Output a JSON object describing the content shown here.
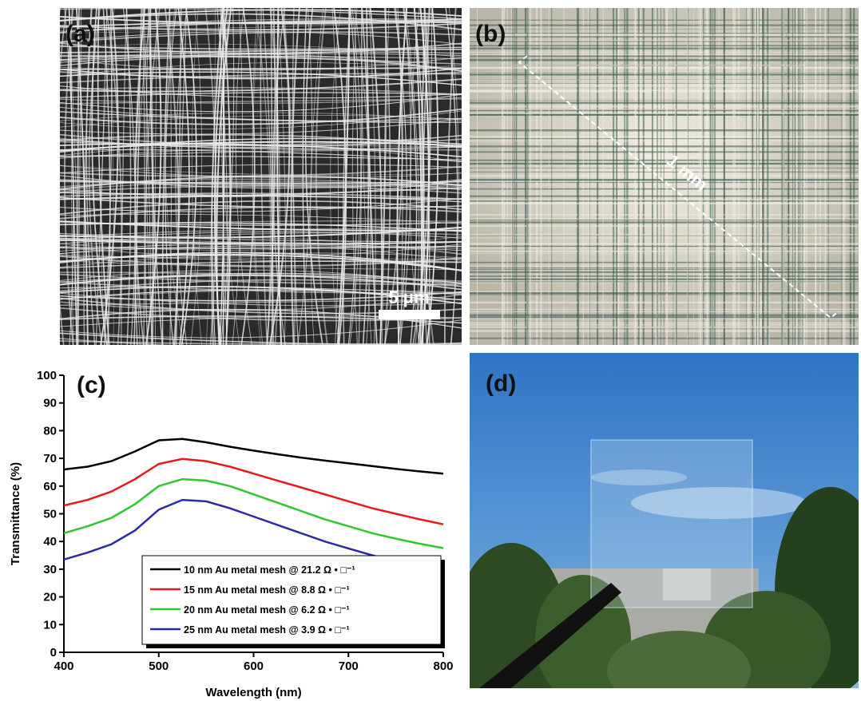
{
  "panels": {
    "a": {
      "label": "(a)",
      "scale_bar": "5 μm"
    },
    "b": {
      "label": "(b)",
      "scale_bar": "1 mm"
    },
    "d": {
      "label": "(d)"
    }
  },
  "chart_data": {
    "type": "line",
    "label": "(c)",
    "xlabel": "Wavelength (nm)",
    "ylabel": "Transmittance (%)",
    "x": [
      400,
      425,
      450,
      475,
      500,
      525,
      550,
      575,
      600,
      625,
      650,
      675,
      700,
      725,
      750,
      775,
      800
    ],
    "xlim": [
      400,
      800
    ],
    "xticks": [
      400,
      500,
      600,
      700,
      800
    ],
    "ylim": [
      0,
      100
    ],
    "yticks": [
      0,
      10,
      20,
      30,
      40,
      50,
      60,
      70,
      80,
      90,
      100
    ],
    "legend": "lower right",
    "series": [
      {
        "name": "10 nm Au metal mesh @ 21.2 Ω • □⁻¹",
        "color": "#000000",
        "values": [
          66,
          67,
          69,
          72.5,
          76.5,
          77,
          75.8,
          74.2,
          72.8,
          71.5,
          70.3,
          69.2,
          68.2,
          67.2,
          66.2,
          65.3,
          64.5
        ]
      },
      {
        "name": "15 nm Au metal mesh @ 8.8 Ω • □⁻¹",
        "color": "#e8191b",
        "values": [
          53,
          55,
          58,
          62.5,
          68,
          69.8,
          69,
          67,
          64.5,
          62,
          59.5,
          57,
          54.5,
          52,
          50,
          48,
          46.2
        ]
      },
      {
        "name": "20 nm Au metal mesh @ 6.2 Ω • □⁻¹",
        "color": "#2ec82e",
        "values": [
          43,
          45.5,
          48.5,
          53.5,
          60,
          62.5,
          62,
          60,
          57,
          54,
          51,
          48,
          45.5,
          43,
          41,
          39.2,
          37.6
        ]
      },
      {
        "name": "25 nm Au metal mesh @ 3.9 Ω • □⁻¹",
        "color": "#2b2ba8",
        "values": [
          33.5,
          36,
          39,
          44,
          51.5,
          55,
          54.5,
          52,
          49,
          46,
          43,
          40,
          37.5,
          35,
          32.8,
          30.8,
          28.8
        ]
      }
    ]
  }
}
